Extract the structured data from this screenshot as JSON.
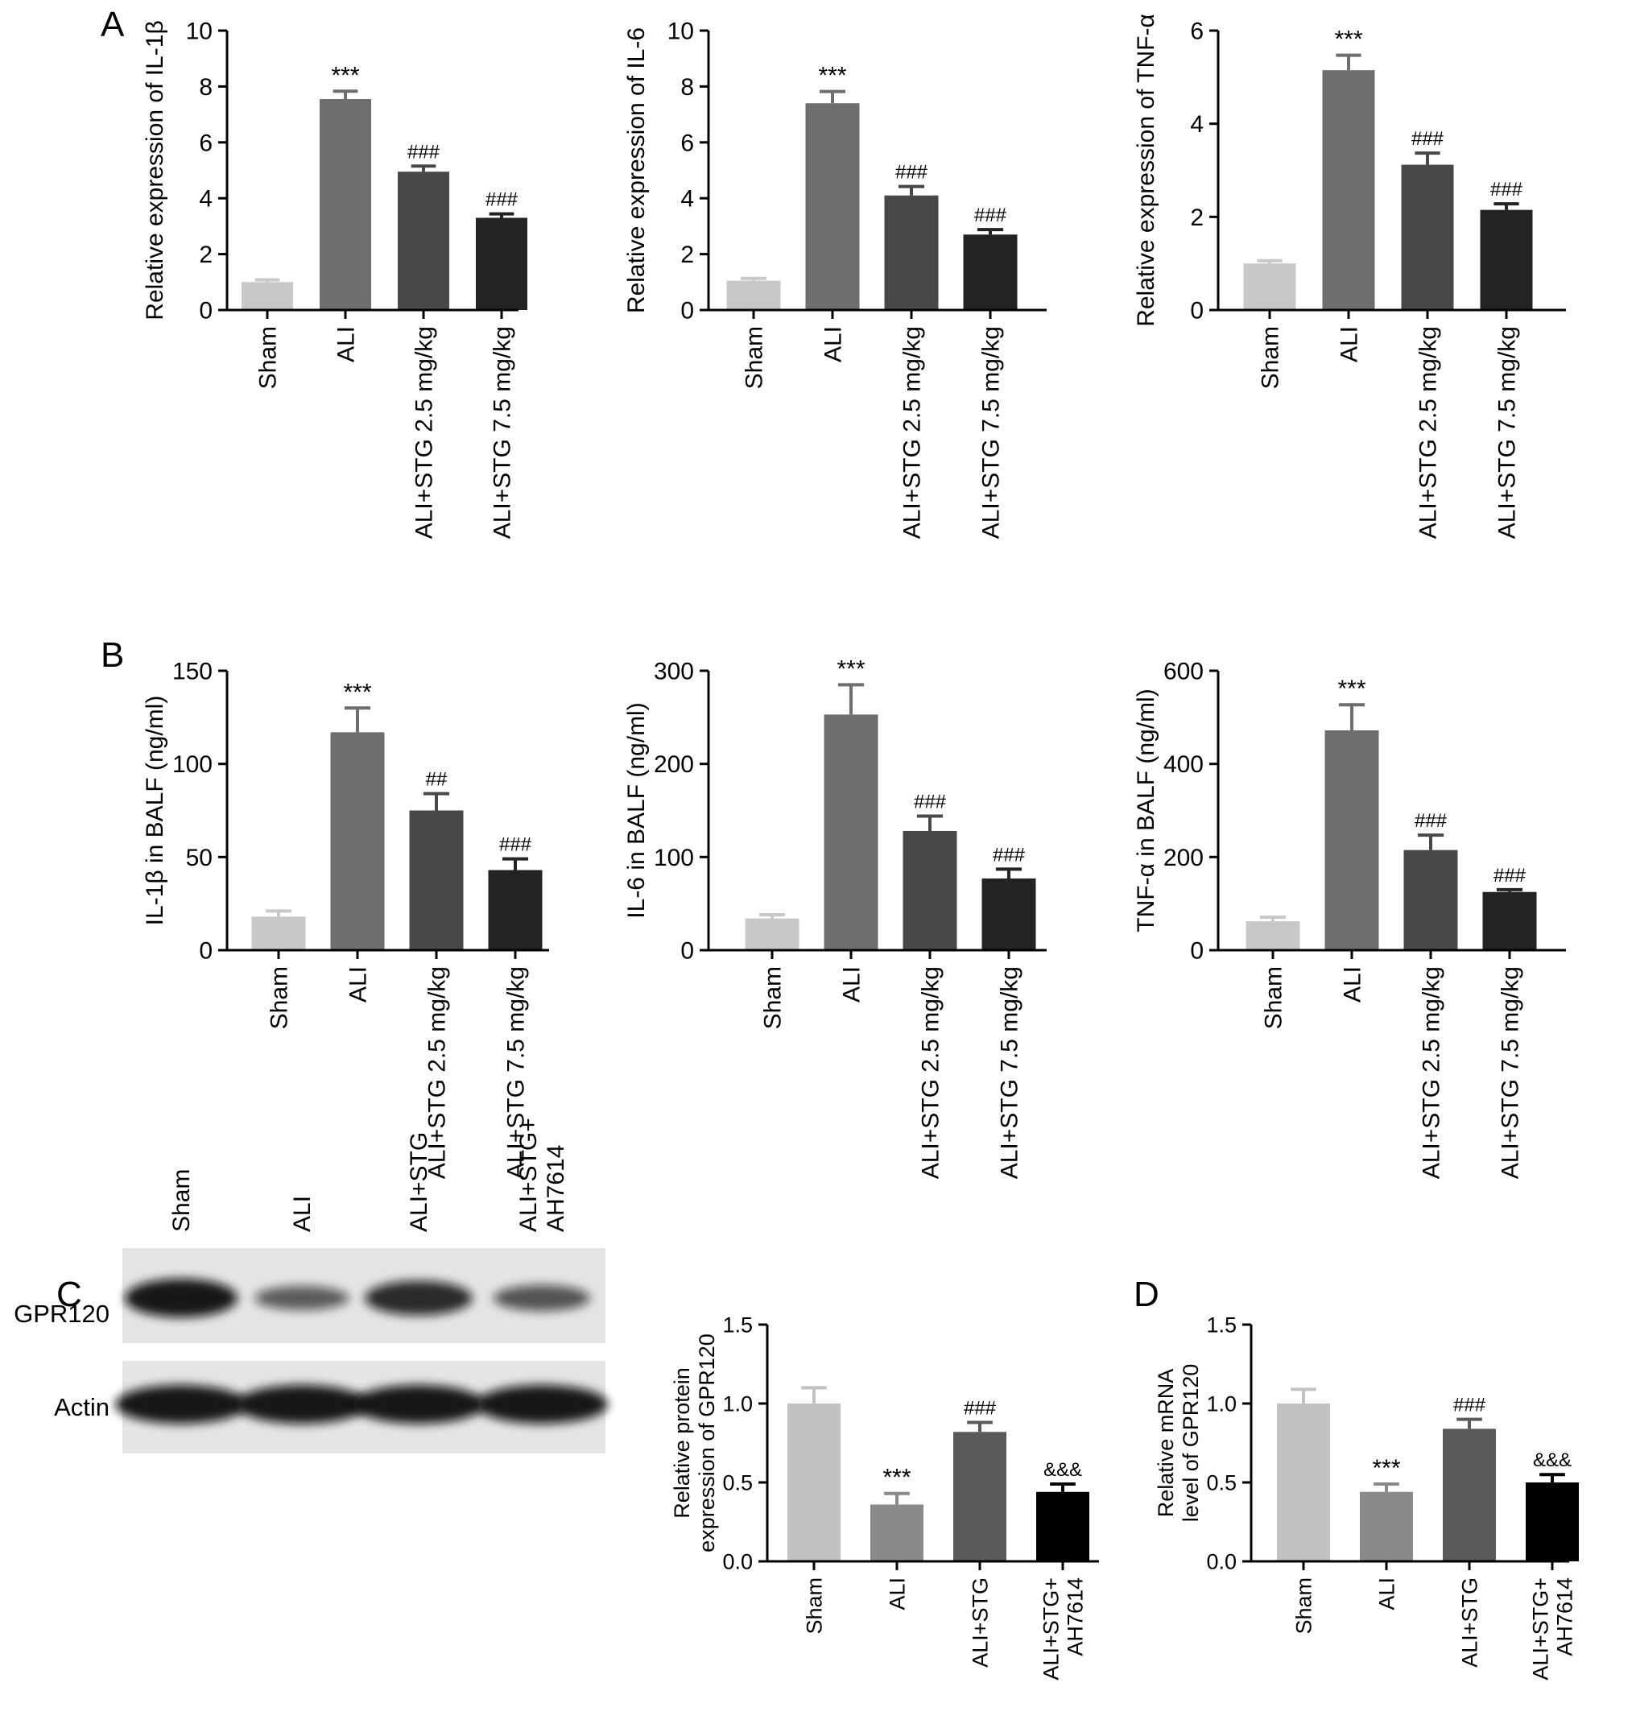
{
  "panel_labels": [
    "A",
    "B",
    "C",
    "D"
  ],
  "colors": {
    "axis": "#000000",
    "bars": [
      "#c8c8c8",
      "#6e6e6e",
      "#484848",
      "#232323"
    ],
    "bars_cd": [
      "#c2c2c2",
      "#8a8a8a",
      "#5a5a5a",
      "#000000"
    ],
    "blot_background": "#e4e4e4",
    "blot_band": "#111111"
  },
  "western_blot": {
    "lanes": [
      "Sham",
      "ALI",
      "ALI+STG",
      "ALI+STG+\nAH7614"
    ],
    "rows": [
      "GPR120",
      "Actin"
    ],
    "gpr120_band_intensity": [
      1.0,
      0.36,
      0.82,
      0.44
    ],
    "actin_band_intensity": [
      1.0,
      1.0,
      1.0,
      1.0
    ]
  },
  "chart_data": [
    {
      "id": "A1",
      "type": "bar",
      "panel": "A",
      "categories": [
        "Sham",
        "ALI",
        "ALI+STG 2.5 mg/kg",
        "ALI+STG 7.5 mg/kg"
      ],
      "values": [
        1.0,
        7.55,
        4.95,
        3.3
      ],
      "errors": [
        0.08,
        0.28,
        0.2,
        0.14
      ],
      "annotations": [
        "",
        "***",
        "###",
        "###"
      ],
      "ylabel": "Relative expression of IL-1β",
      "ylim": [
        0,
        10
      ],
      "yticks": [
        "0",
        "2",
        "4",
        "6",
        "8",
        "10"
      ]
    },
    {
      "id": "A2",
      "type": "bar",
      "panel": "A",
      "categories": [
        "Sham",
        "ALI",
        "ALI+STG 2.5 mg/kg",
        "ALI+STG 7.5 mg/kg"
      ],
      "values": [
        1.05,
        7.4,
        4.1,
        2.7
      ],
      "errors": [
        0.08,
        0.42,
        0.32,
        0.18
      ],
      "annotations": [
        "",
        "***",
        "###",
        "###"
      ],
      "ylabel": "Relative expression of IL-6",
      "ylim": [
        0,
        10
      ],
      "yticks": [
        "0",
        "2",
        "4",
        "6",
        "8",
        "10"
      ]
    },
    {
      "id": "A3",
      "type": "bar",
      "panel": "A",
      "categories": [
        "Sham",
        "ALI",
        "ALI+STG 2.5 mg/kg",
        "ALI+STG 7.5 mg/kg"
      ],
      "values": [
        1.0,
        5.15,
        3.12,
        2.15
      ],
      "errors": [
        0.06,
        0.32,
        0.25,
        0.13
      ],
      "annotations": [
        "",
        "***",
        "###",
        "###"
      ],
      "ylabel": "Relative expression of TNF-α",
      "ylim": [
        0,
        6
      ],
      "yticks": [
        "0",
        "2",
        "4",
        "6"
      ]
    },
    {
      "id": "B1",
      "type": "bar",
      "panel": "B",
      "categories": [
        "Sham",
        "ALI",
        "ALI+STG 2.5 mg/kg",
        "ALI+STG 7.5 mg/kg"
      ],
      "values": [
        18,
        117,
        75,
        43
      ],
      "errors": [
        3,
        13,
        9,
        6
      ],
      "annotations": [
        "",
        "***",
        "##",
        "###"
      ],
      "ylabel": "IL-1β in BALF (ng/ml)",
      "ylim": [
        0,
        150
      ],
      "yticks": [
        "0",
        "50",
        "100",
        "150"
      ]
    },
    {
      "id": "B2",
      "type": "bar",
      "panel": "B",
      "categories": [
        "Sham",
        "ALI",
        "ALI+STG 2.5 mg/kg",
        "ALI+STG 7.5 mg/kg"
      ],
      "values": [
        34,
        253,
        128,
        77
      ],
      "errors": [
        4,
        32,
        16,
        10
      ],
      "annotations": [
        "",
        "***",
        "###",
        "###"
      ],
      "ylabel": "IL-6 in BALF (ng/ml)",
      "ylim": [
        0,
        300
      ],
      "yticks": [
        "0",
        "100",
        "200",
        "300"
      ]
    },
    {
      "id": "B3",
      "type": "bar",
      "panel": "B",
      "categories": [
        "Sham",
        "ALI",
        "ALI+STG 2.5 mg/kg",
        "ALI+STG 7.5 mg/kg"
      ],
      "values": [
        62,
        472,
        215,
        125
      ],
      "errors": [
        9,
        55,
        32,
        5
      ],
      "annotations": [
        "",
        "***",
        "###",
        "###"
      ],
      "ylabel": "TNF-α in BALF (ng/ml)",
      "ylim": [
        0,
        600
      ],
      "yticks": [
        "0",
        "200",
        "400",
        "600"
      ]
    },
    {
      "id": "C",
      "type": "bar",
      "panel": "C",
      "categories": [
        "Sham",
        "ALI",
        "ALI+STG",
        "ALI+STG+\nAH7614"
      ],
      "values": [
        1.0,
        0.36,
        0.82,
        0.44
      ],
      "errors": [
        0.1,
        0.07,
        0.06,
        0.05
      ],
      "annotations": [
        "",
        "***",
        "###",
        "&&&"
      ],
      "ylabel": "Relative protein\nexpression of GPR120",
      "ylim": [
        0,
        1.5
      ],
      "yticks": [
        "0.0",
        "0.5",
        "1.0",
        "1.5"
      ]
    },
    {
      "id": "D",
      "type": "bar",
      "panel": "D",
      "categories": [
        "Sham",
        "ALI",
        "ALI+STG",
        "ALI+STG+\nAH7614"
      ],
      "values": [
        1.0,
        0.44,
        0.84,
        0.5
      ],
      "errors": [
        0.09,
        0.05,
        0.06,
        0.05
      ],
      "annotations": [
        "",
        "***",
        "###",
        "&&&"
      ],
      "ylabel": "Relative mRNA\nlevel of GPR120",
      "ylim": [
        0,
        1.5
      ],
      "yticks": [
        "0.0",
        "0.5",
        "1.0",
        "1.5"
      ]
    }
  ]
}
